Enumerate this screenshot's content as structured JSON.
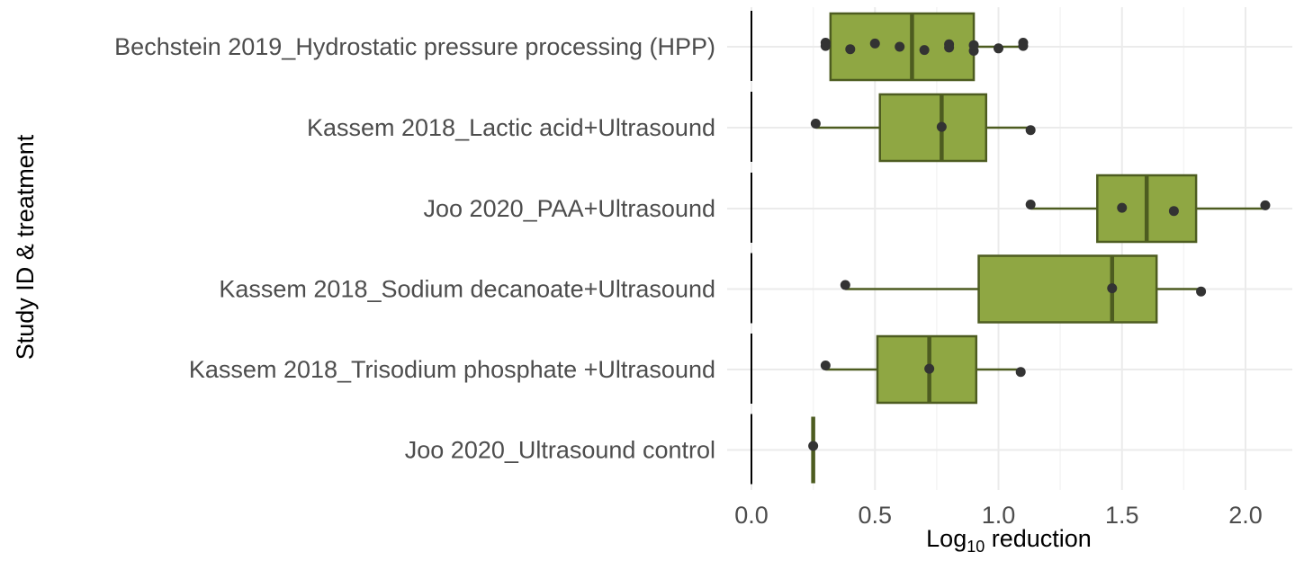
{
  "chart_data": {
    "type": "box",
    "ylabel": "Study ID & treatment",
    "xlabel_main": "Log",
    "xlabel_sub": "10",
    "xlabel_rest": " reduction",
    "xlim": [
      0,
      2.1
    ],
    "xticks": [
      0.0,
      0.5,
      1.0,
      1.5,
      2.0
    ],
    "xtick_labels": [
      "0.0",
      "0.5",
      "1.0",
      "1.5",
      "2.0"
    ],
    "reference_line_x": 0,
    "grid": true,
    "colors": {
      "box_fill": "#8fa743",
      "box_line": "#4d5c20",
      "point": "#333333"
    },
    "categories": [
      {
        "label": "Bechstein 2019_Hydrostatic pressure processing (HPP)",
        "q1": 0.32,
        "median": 0.65,
        "q3": 0.9,
        "whisker_low": 0.3,
        "whisker_high": 1.1,
        "points": [
          0.3,
          0.3,
          0.4,
          0.5,
          0.6,
          0.7,
          0.8,
          0.8,
          0.9,
          0.9,
          1.0,
          1.1,
          1.1
        ]
      },
      {
        "label": "Kassem 2018_Lactic acid+Ultrasound",
        "q1": 0.52,
        "median": 0.77,
        "q3": 0.95,
        "whisker_low": 0.26,
        "whisker_high": 1.13,
        "points": [
          0.26,
          0.77,
          1.13
        ]
      },
      {
        "label": "Joo 2020_PAA+Ultrasound",
        "q1": 1.4,
        "median": 1.6,
        "q3": 1.8,
        "whisker_low": 1.13,
        "whisker_high": 2.08,
        "points": [
          1.13,
          1.5,
          1.71,
          2.08
        ]
      },
      {
        "label": "Kassem 2018_Sodium decanoate+Ultrasound",
        "q1": 0.92,
        "median": 1.46,
        "q3": 1.64,
        "whisker_low": 0.38,
        "whisker_high": 1.82,
        "points": [
          0.38,
          1.46,
          1.82
        ]
      },
      {
        "label": "Kassem 2018_Trisodium phosphate +Ultrasound",
        "q1": 0.51,
        "median": 0.72,
        "q3": 0.91,
        "whisker_low": 0.3,
        "whisker_high": 1.09,
        "points": [
          0.3,
          0.72,
          1.09
        ]
      },
      {
        "label": "Joo 2020_Ultrasound control",
        "q1": 0.25,
        "median": 0.25,
        "q3": 0.25,
        "whisker_low": 0.25,
        "whisker_high": 0.25,
        "points": [
          0.25
        ]
      }
    ]
  }
}
